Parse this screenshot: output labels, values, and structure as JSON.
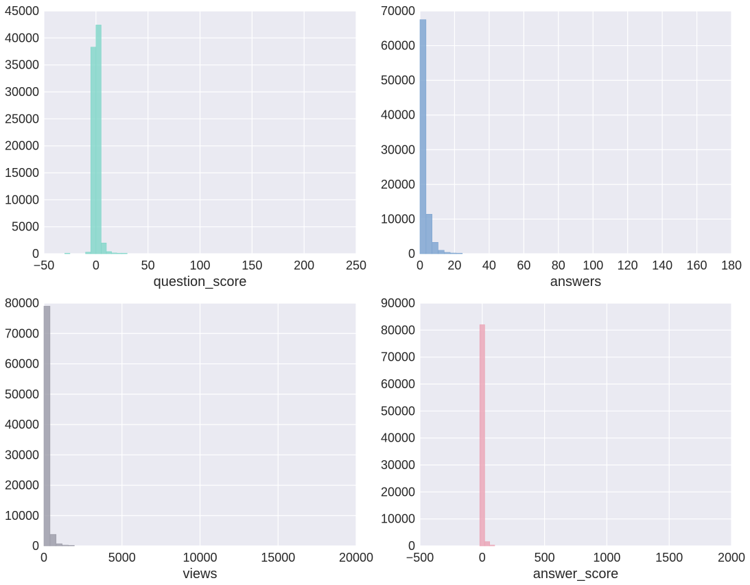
{
  "chart_data": [
    {
      "type": "bar",
      "xlabel": "question_score",
      "ylabel": "",
      "xlim": [
        -50,
        250
      ],
      "ylim": [
        0,
        45000
      ],
      "xticks": [
        -50,
        0,
        50,
        100,
        150,
        200,
        250
      ],
      "yticks": [
        0,
        5000,
        10000,
        15000,
        20000,
        25000,
        30000,
        35000,
        40000,
        45000
      ],
      "grid": true,
      "color": "#7fd6c8",
      "bins": [
        {
          "x0": -30,
          "x1": -25,
          "value": 100
        },
        {
          "x0": -10,
          "x1": -5,
          "value": 300
        },
        {
          "x0": -5,
          "x1": 0,
          "value": 38300
        },
        {
          "x0": 0,
          "x1": 5,
          "value": 42400
        },
        {
          "x0": 5,
          "x1": 10,
          "value": 2000
        },
        {
          "x0": 10,
          "x1": 15,
          "value": 400
        },
        {
          "x0": 15,
          "x1": 20,
          "value": 150
        },
        {
          "x0": 20,
          "x1": 25,
          "value": 80
        },
        {
          "x0": 25,
          "x1": 30,
          "value": 40
        }
      ]
    },
    {
      "type": "bar",
      "xlabel": "answers",
      "ylabel": "",
      "xlim": [
        0,
        180
      ],
      "ylim": [
        0,
        70000
      ],
      "xticks": [
        0,
        20,
        40,
        60,
        80,
        100,
        120,
        140,
        160,
        180
      ],
      "yticks": [
        0,
        10000,
        20000,
        30000,
        40000,
        50000,
        60000,
        70000
      ],
      "grid": true,
      "color": "#7ba3cf",
      "bins": [
        {
          "x0": 0,
          "x1": 3.5,
          "value": 67500
        },
        {
          "x0": 3.5,
          "x1": 7,
          "value": 11400
        },
        {
          "x0": 7,
          "x1": 10.5,
          "value": 3300
        },
        {
          "x0": 10.5,
          "x1": 14,
          "value": 1000
        },
        {
          "x0": 14,
          "x1": 17.5,
          "value": 400
        },
        {
          "x0": 17.5,
          "x1": 21,
          "value": 200
        },
        {
          "x0": 21,
          "x1": 24.5,
          "value": 100
        }
      ]
    },
    {
      "type": "bar",
      "xlabel": "views",
      "ylabel": "",
      "xlim": [
        0,
        20000
      ],
      "ylim": [
        0,
        80000
      ],
      "xticks": [
        0,
        5000,
        10000,
        15000,
        20000
      ],
      "yticks": [
        0,
        10000,
        20000,
        30000,
        40000,
        50000,
        60000,
        70000,
        80000
      ],
      "grid": true,
      "color": "#9a9aa6",
      "bins": [
        {
          "x0": 0,
          "x1": 390,
          "value": 79000
        },
        {
          "x0": 390,
          "x1": 780,
          "value": 3800
        },
        {
          "x0": 780,
          "x1": 1170,
          "value": 700
        },
        {
          "x0": 1170,
          "x1": 1560,
          "value": 250
        },
        {
          "x0": 1560,
          "x1": 1950,
          "value": 100
        }
      ]
    },
    {
      "type": "bar",
      "xlabel": "answer_score",
      "ylabel": "",
      "xlim": [
        -500,
        2000
      ],
      "ylim": [
        0,
        90000
      ],
      "xticks": [
        -500,
        0,
        500,
        1000,
        1500,
        2000
      ],
      "yticks": [
        0,
        10000,
        20000,
        30000,
        40000,
        50000,
        60000,
        70000,
        80000,
        90000
      ],
      "grid": true,
      "color": "#eba3b4",
      "bins": [
        {
          "x0": -20,
          "x1": 20,
          "value": 82000
        },
        {
          "x0": 20,
          "x1": 60,
          "value": 1600
        },
        {
          "x0": 60,
          "x1": 100,
          "value": 300
        }
      ]
    }
  ]
}
